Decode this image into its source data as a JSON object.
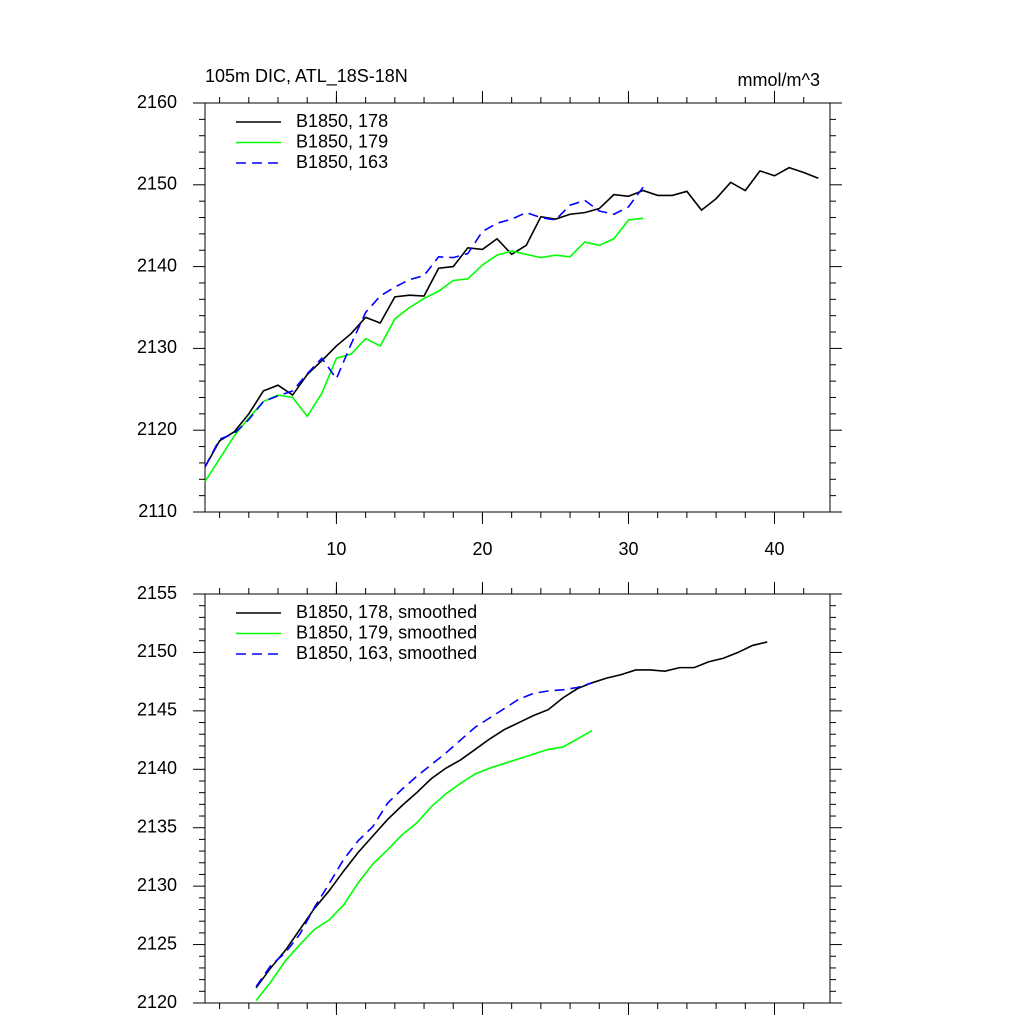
{
  "chart_data": [
    {
      "type": "line",
      "title": "105m DIC, ATL_18S-18N",
      "units": "mmol/m^3",
      "xlim": [
        1,
        43.8
      ],
      "xticks": [
        10,
        20,
        30,
        40
      ],
      "ylim": [
        2110,
        2160
      ],
      "yticks": [
        2110,
        2120,
        2130,
        2140,
        2150,
        2160
      ],
      "show_xtick_labels": true,
      "series": [
        {
          "name": "B1850, 178",
          "color": "#000000",
          "dashed": false,
          "x": [
            1,
            2,
            3,
            4,
            5,
            6,
            7,
            8,
            9,
            10,
            11,
            12,
            13,
            14,
            15,
            16,
            17,
            18,
            19,
            20,
            21,
            22,
            23,
            24,
            25,
            26,
            27,
            28,
            29,
            30,
            31,
            32,
            33,
            34,
            35,
            36,
            37,
            38,
            39,
            40,
            41,
            42,
            43
          ],
          "values": [
            2115.5,
            2118.7,
            2119.8,
            2122,
            2124.8,
            2125.5,
            2124.3,
            2126.8,
            2128.5,
            2130.3,
            2131.8,
            2133.8,
            2133.1,
            2136.3,
            2136.5,
            2136.4,
            2139.8,
            2140,
            2142.3,
            2142.1,
            2143.4,
            2141.5,
            2142.6,
            2146.1,
            2145.8,
            2146.4,
            2146.6,
            2147.1,
            2148.8,
            2148.6,
            2149.3,
            2148.7,
            2148.7,
            2149.2,
            2146.9,
            2148.3,
            2150.3,
            2149.3,
            2151.7,
            2151.1,
            2152.1,
            2151.5,
            2150.8
          ]
        },
        {
          "name": "B1850, 179",
          "color": "#00ff00",
          "dashed": false,
          "x": [
            1,
            2,
            3,
            4,
            5,
            6,
            7,
            8,
            9,
            10,
            11,
            12,
            13,
            14,
            15,
            16,
            17,
            18,
            19,
            20,
            21,
            22,
            23,
            24,
            25,
            26,
            27,
            28,
            29,
            30,
            31
          ],
          "values": [
            2113.7,
            2116.5,
            2119.3,
            2121.5,
            2123.5,
            2124.3,
            2124,
            2121.7,
            2124.5,
            2128.8,
            2129.3,
            2131.2,
            2130.3,
            2133.6,
            2135,
            2136.1,
            2137,
            2138.3,
            2138.5,
            2140.2,
            2141.4,
            2141.9,
            2141.5,
            2141.1,
            2141.4,
            2141.2,
            2143,
            2142.6,
            2143.4,
            2145.7,
            2145.9
          ]
        },
        {
          "name": "B1850, 163",
          "color": "#0000ff",
          "dashed": true,
          "x": [
            1,
            2,
            3,
            4,
            5,
            6,
            7,
            8,
            9,
            10,
            11,
            12,
            13,
            14,
            15,
            16,
            17,
            18,
            19,
            20,
            21,
            22,
            23,
            24,
            25,
            26,
            27,
            28,
            29,
            30,
            31
          ],
          "values": [
            2115.5,
            2118.9,
            2119.6,
            2121.3,
            2123.5,
            2124.2,
            2124.8,
            2126.9,
            2128.8,
            2126.3,
            2130.5,
            2134.4,
            2136.4,
            2137.5,
            2138.4,
            2138.9,
            2141.2,
            2141.1,
            2141.6,
            2144.3,
            2145.3,
            2145.8,
            2146.6,
            2146,
            2145.7,
            2147.5,
            2148.1,
            2146.8,
            2146.4,
            2147.3,
            2149.7
          ]
        }
      ]
    },
    {
      "type": "line",
      "xlim": [
        1,
        43.8
      ],
      "xticks": [
        10,
        20,
        30,
        40
      ],
      "ylim": [
        2120,
        2155
      ],
      "yticks": [
        2120,
        2125,
        2130,
        2135,
        2140,
        2145,
        2150,
        2155
      ],
      "show_xtick_labels": false,
      "series": [
        {
          "name": "B1850, 178, smoothed",
          "color": "#000000",
          "dashed": false,
          "x": [
            4.5,
            5.5,
            6.5,
            7.5,
            8.5,
            9.5,
            10.5,
            11.5,
            12.5,
            13.5,
            14.5,
            15.5,
            16.5,
            17.5,
            18.5,
            19.5,
            20.5,
            21.5,
            22.5,
            23.5,
            24.5,
            25.5,
            26.5,
            27.5,
            28.5,
            29.5,
            30.5,
            31.5,
            32.5,
            33.5,
            34.5,
            35.5,
            36.5,
            37.5,
            38.5,
            39.5
          ],
          "values": [
            2121.3,
            2123,
            2124.5,
            2126.3,
            2128.1,
            2129.6,
            2131.3,
            2132.9,
            2134.3,
            2135.7,
            2136.9,
            2138,
            2139.2,
            2140.1,
            2140.8,
            2141.7,
            2142.6,
            2143.4,
            2144,
            2144.6,
            2145.1,
            2146.1,
            2146.9,
            2147.4,
            2147.8,
            2148.1,
            2148.5,
            2148.5,
            2148.4,
            2148.7,
            2148.7,
            2149.2,
            2149.5,
            2150,
            2150.6,
            2150.9
          ]
        },
        {
          "name": "B1850, 179, smoothed",
          "color": "#00ff00",
          "dashed": false,
          "x": [
            4.5,
            5.5,
            6.5,
            7.5,
            8.5,
            9.5,
            10.5,
            11.5,
            12.5,
            13.5,
            14.5,
            15.5,
            16.5,
            17.5,
            18.5,
            19.5,
            20.5,
            21.5,
            22.5,
            23.5,
            24.5,
            25.5,
            26.5,
            27.5
          ],
          "values": [
            2120.2,
            2121.8,
            2123.6,
            2125,
            2126.3,
            2127.1,
            2128.4,
            2130.3,
            2131.9,
            2133.1,
            2134.4,
            2135.4,
            2136.8,
            2137.9,
            2138.8,
            2139.6,
            2140.1,
            2140.5,
            2140.9,
            2141.3,
            2141.7,
            2141.9,
            2142.6,
            2143.3
          ]
        },
        {
          "name": "B1850, 163, smoothed",
          "color": "#0000ff",
          "dashed": true,
          "x": [
            4.5,
            5.5,
            6.5,
            7.5,
            8.5,
            9.5,
            10.5,
            11.5,
            12.5,
            13.5,
            14.5,
            15.5,
            16.5,
            17.5,
            18.5,
            19.5,
            20.5,
            21.5,
            22.5,
            23.5,
            24.5,
            25.5,
            26.5,
            27.5
          ],
          "values": [
            2121.4,
            2123.2,
            2124.3,
            2125.9,
            2128.2,
            2130.2,
            2132.3,
            2133.9,
            2135.1,
            2137.1,
            2138.3,
            2139.4,
            2140.4,
            2141.4,
            2142.5,
            2143.6,
            2144.4,
            2145.2,
            2146,
            2146.5,
            2146.7,
            2146.8,
            2147,
            2147.4
          ]
        }
      ]
    }
  ]
}
